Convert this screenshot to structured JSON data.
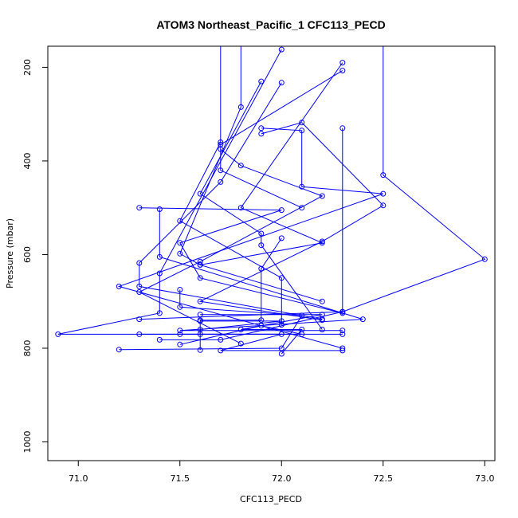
{
  "chart_data": {
    "type": "line",
    "title": "ATOM3 Northeast_Pacific_1 CFC113_PECD",
    "xlabel": "CFC113_PECD",
    "ylabel": "Pressure (mbar)",
    "xlim": [
      70.85,
      73.05
    ],
    "ylim": [
      1040,
      155
    ],
    "y_inverted": true,
    "x_ticks": [
      71.0,
      71.5,
      72.0,
      72.5,
      73.0
    ],
    "x_tick_labels": [
      "71.0",
      "71.5",
      "72.0",
      "72.5",
      "73.0"
    ],
    "y_ticks": [
      200,
      400,
      600,
      800,
      1000
    ],
    "y_tick_labels": [
      "200",
      "400",
      "600",
      "800",
      "1000"
    ],
    "grid": false,
    "series_color": "#0000ff",
    "profiles": [
      {
        "points": [
          [
            72.5,
            150
          ],
          [
            72.5,
            430
          ],
          [
            73.0,
            610
          ],
          [
            72.3,
            722
          ],
          [
            71.3,
            738
          ]
        ]
      },
      {
        "points": [
          [
            72.3,
            190
          ],
          [
            71.8,
            500
          ],
          [
            72.2,
            575
          ],
          [
            71.6,
            622
          ]
        ]
      },
      {
        "points": [
          [
            72.3,
            207
          ],
          [
            71.7,
            365
          ],
          [
            71.7,
            420
          ],
          [
            72.1,
            500
          ]
        ]
      },
      {
        "points": [
          [
            72.0,
            162
          ],
          [
            71.4,
            640
          ],
          [
            71.4,
            725
          ],
          [
            70.9,
            770
          ],
          [
            72.3,
            770
          ]
        ]
      },
      {
        "points": [
          [
            71.8,
            150
          ],
          [
            71.8,
            285
          ],
          [
            71.5,
            598
          ],
          [
            71.6,
            622
          ],
          [
            72.2,
            700
          ]
        ]
      },
      {
        "points": [
          [
            71.9,
            230
          ],
          [
            71.6,
            470
          ],
          [
            71.9,
            555
          ],
          [
            71.9,
            580
          ],
          [
            72.2,
            760
          ]
        ]
      },
      {
        "points": [
          [
            71.7,
            150
          ],
          [
            71.7,
            360
          ],
          [
            71.5,
            528
          ],
          [
            72.0,
            650
          ],
          [
            72.0,
            750
          ]
        ]
      },
      {
        "points": [
          [
            72.0,
            233
          ],
          [
            71.7,
            445
          ],
          [
            71.3,
            618
          ],
          [
            71.3,
            668
          ],
          [
            72.2,
            738
          ]
        ]
      },
      {
        "points": [
          [
            71.9,
            330
          ],
          [
            72.1,
            335
          ],
          [
            72.1,
            455
          ],
          [
            72.5,
            470
          ],
          [
            71.2,
            668
          ],
          [
            72.3,
            800
          ]
        ]
      },
      {
        "points": [
          [
            71.9,
            342
          ],
          [
            72.1,
            318
          ],
          [
            72.5,
            495
          ],
          [
            72.2,
            572
          ],
          [
            71.6,
            700
          ],
          [
            72.2,
            740
          ]
        ]
      },
      {
        "points": [
          [
            71.7,
            375
          ],
          [
            71.8,
            410
          ],
          [
            72.2,
            475
          ],
          [
            71.6,
            615
          ],
          [
            71.3,
            680
          ],
          [
            71.8,
            790
          ]
        ]
      },
      {
        "points": [
          [
            71.3,
            500
          ],
          [
            72.0,
            505
          ],
          [
            71.5,
            575
          ],
          [
            71.6,
            650
          ],
          [
            72.3,
            725
          ]
        ]
      },
      {
        "points": [
          [
            71.4,
            503
          ],
          [
            71.4,
            605
          ],
          [
            72.4,
            738
          ],
          [
            71.5,
            762
          ],
          [
            72.3,
            762
          ]
        ]
      },
      {
        "points": [
          [
            72.3,
            330
          ],
          [
            72.3,
            722
          ],
          [
            71.7,
            782
          ],
          [
            71.4,
            782
          ]
        ]
      },
      {
        "points": [
          [
            72.0,
            565
          ],
          [
            71.9,
            630
          ],
          [
            71.9,
            740
          ],
          [
            71.6,
            740
          ],
          [
            71.6,
            770
          ]
        ]
      },
      {
        "points": [
          [
            71.5,
            675
          ],
          [
            71.5,
            712
          ],
          [
            72.1,
            730
          ],
          [
            72.0,
            800
          ],
          [
            71.2,
            803
          ]
        ]
      },
      {
        "points": [
          [
            71.6,
            728
          ],
          [
            72.2,
            728
          ],
          [
            71.8,
            760
          ],
          [
            72.1,
            760
          ],
          [
            72.0,
            812
          ]
        ]
      },
      {
        "points": [
          [
            71.5,
            770
          ],
          [
            72.0,
            770
          ],
          [
            71.7,
            805
          ],
          [
            72.3,
            805
          ]
        ]
      },
      {
        "points": [
          [
            71.6,
            742
          ],
          [
            72.0,
            742
          ],
          [
            71.6,
            760
          ],
          [
            71.6,
            804
          ]
        ]
      },
      {
        "points": [
          [
            71.3,
            770
          ],
          [
            72.1,
            770
          ],
          [
            71.9,
            752
          ],
          [
            71.5,
            792
          ]
        ]
      }
    ]
  }
}
